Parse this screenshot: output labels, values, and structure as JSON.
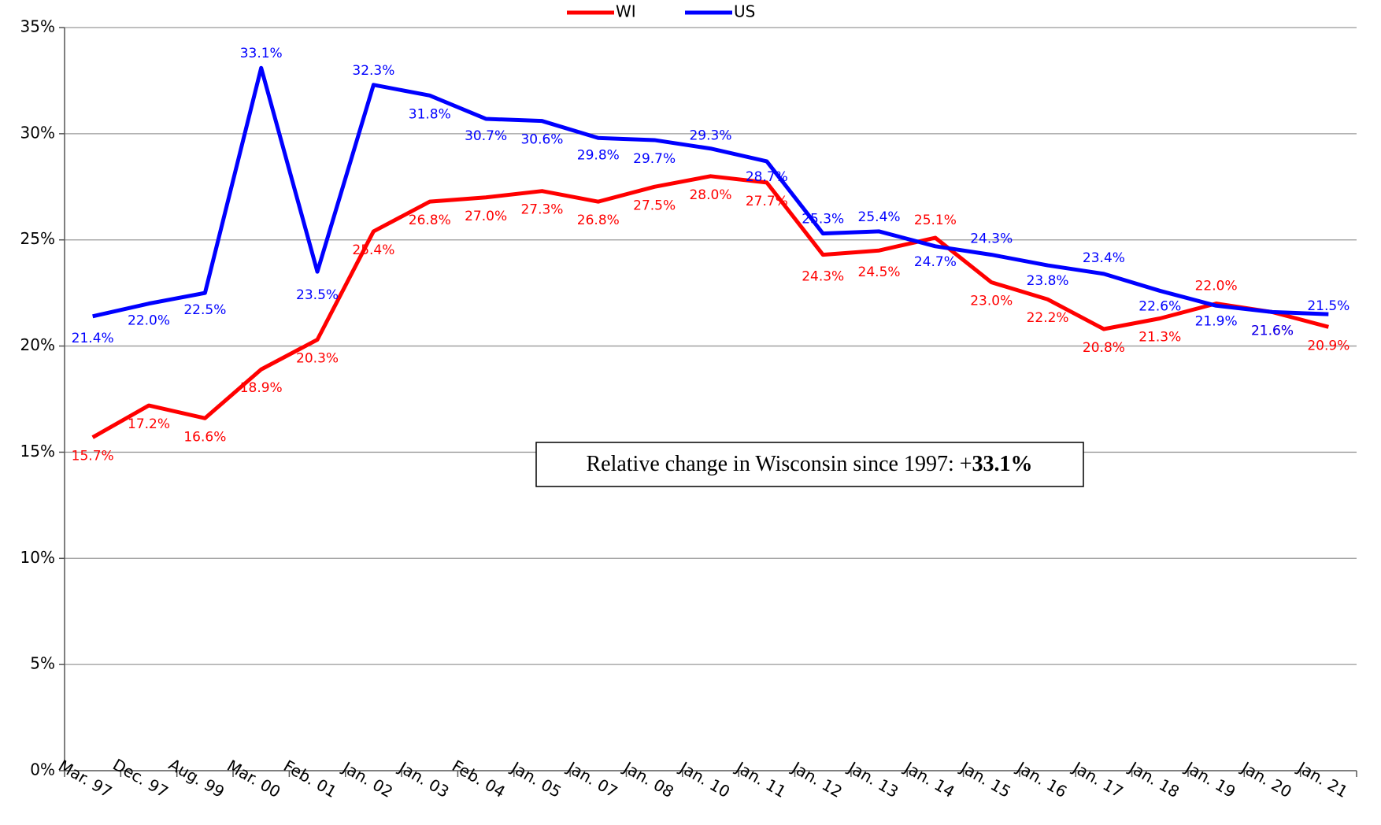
{
  "chart_data": {
    "type": "line",
    "categories": [
      "Mar. 97",
      "Dec. 97",
      "Aug. 99",
      "Mar. 00",
      "Feb. 01",
      "Jan. 02",
      "Jan. 03",
      "Feb. 04",
      "Jan. 05",
      "Jan. 07",
      "Jan. 08",
      "Jan. 10",
      "Jan. 11",
      "Jan. 12",
      "Jan. 13",
      "Jan. 14",
      "Jan. 15",
      "Jan. 16",
      "Jan. 17",
      "Jan. 18",
      "Jan. 19",
      "Jan. 20",
      "Jan. 21"
    ],
    "series": [
      {
        "name": "WI",
        "color": "#ff0000",
        "values": [
          15.7,
          17.2,
          16.6,
          18.9,
          20.3,
          25.4,
          26.8,
          27.0,
          27.3,
          26.8,
          27.5,
          28.0,
          27.7,
          24.3,
          24.5,
          25.1,
          23.0,
          22.2,
          20.8,
          21.3,
          22.0,
          21.6,
          20.9
        ],
        "value_labels": [
          "15.7%",
          "17.2%",
          "16.6%",
          "18.9%",
          "20.3%",
          "25.4%",
          "26.8%",
          "27.0%",
          "27.3%",
          "26.8%",
          "27.5%",
          "28.0%",
          "27.7%",
          "24.3%",
          "24.5%",
          "25.1%",
          "23.0%",
          "22.2%",
          "20.8%",
          "21.3%",
          "22.0%",
          "21.6%",
          "20.9%"
        ]
      },
      {
        "name": "US",
        "color": "#0000ff",
        "values": [
          21.4,
          22.0,
          22.5,
          33.1,
          23.5,
          32.3,
          31.8,
          30.7,
          30.6,
          29.8,
          29.7,
          29.3,
          28.7,
          25.3,
          25.4,
          24.7,
          24.3,
          23.8,
          23.4,
          22.6,
          21.9,
          21.6,
          21.5
        ],
        "value_labels": [
          "21.4%",
          "22.0%",
          "22.5%",
          "33.1%",
          "23.5%",
          "32.3%",
          "31.8%",
          "30.7%",
          "30.6%",
          "29.8%",
          "29.7%",
          "29.3%",
          "28.7%",
          "25.3%",
          "25.4%",
          "24.7%",
          "24.3%",
          "23.8%",
          "23.4%",
          "22.6%",
          "21.9%",
          "21.6%",
          "21.5%"
        ]
      }
    ],
    "ylim": [
      0,
      35
    ],
    "yticks": [
      {
        "value": 0,
        "label": "0%"
      },
      {
        "value": 5,
        "label": "5%"
      },
      {
        "value": 10,
        "label": "10%"
      },
      {
        "value": 15,
        "label": "15%"
      },
      {
        "value": 20,
        "label": "20%"
      },
      {
        "value": 25,
        "label": "25%"
      },
      {
        "value": 30,
        "label": "30%"
      },
      {
        "value": 35,
        "label": "35%"
      }
    ],
    "grid": true,
    "legend": "top",
    "annotation": {
      "text": "Relative change in Wisconsin since 1997: +",
      "emphasis": "33.1%"
    }
  }
}
